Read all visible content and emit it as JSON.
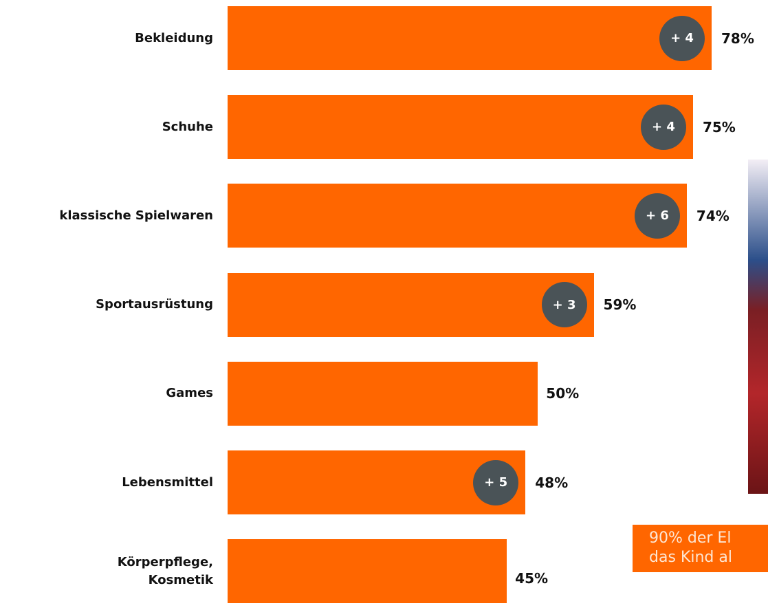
{
  "chart_data": {
    "type": "bar",
    "orientation": "horizontal",
    "color": "#ff6600",
    "badge_color": "#4a5357",
    "categories": [
      "Bekleidung",
      "Schuhe",
      "klassische Spielwaren",
      "Sportausrüstung",
      "Games",
      "Lebensmittel",
      "Körperpflege,\nKosmetik"
    ],
    "values": [
      78,
      75,
      74,
      59,
      50,
      48,
      45
    ],
    "value_labels": [
      "78%",
      "75%",
      "74%",
      "59%",
      "50%",
      "48%",
      "45%"
    ],
    "badges": [
      "+ 4",
      "+ 4",
      "+ 6",
      "+ 3",
      null,
      "+ 5",
      null
    ]
  },
  "callout": {
    "lines": [
      "90% der El",
      "das Kind al"
    ]
  }
}
